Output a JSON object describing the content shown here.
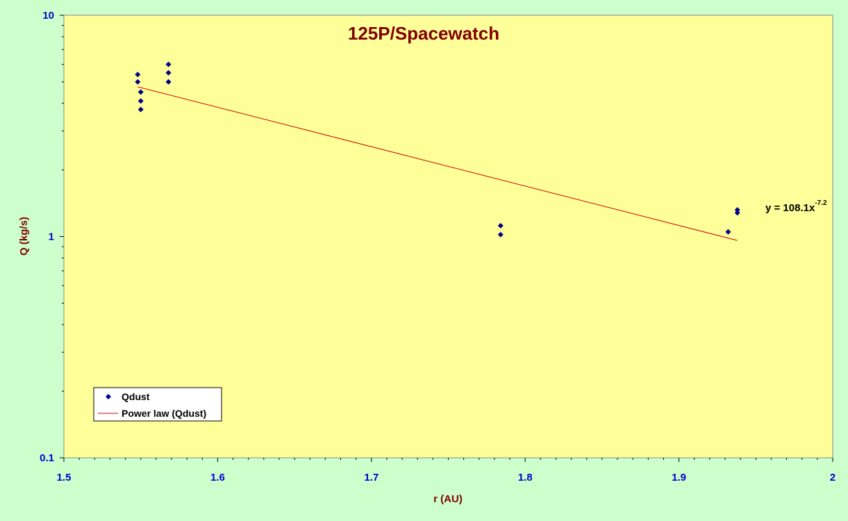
{
  "chart_data": {
    "type": "scatter",
    "title": "125P/Spacewatch",
    "xlabel": "r (AU)",
    "ylabel": "Q (kg/s)",
    "xlim": [
      1.5,
      2
    ],
    "ylim": [
      0.1,
      10
    ],
    "y_scale": "log",
    "x_ticks": [
      "1.5",
      "1.6",
      "1.7",
      "1.8",
      "1.9",
      "2"
    ],
    "y_ticks": [
      "0.1",
      "1",
      "10"
    ],
    "grid": false,
    "legend_position": "bottom-left",
    "series": [
      {
        "name": "Qdust",
        "kind": "points",
        "marker": "diamond",
        "color": "#00008b",
        "x": [
          1.548,
          1.548,
          1.55,
          1.55,
          1.55,
          1.568,
          1.568,
          1.568,
          1.784,
          1.784,
          1.932,
          1.938,
          1.938
        ],
        "y": [
          5.4,
          5.0,
          4.5,
          4.1,
          3.75,
          6.0,
          5.5,
          5.0,
          1.12,
          1.02,
          1.05,
          1.32,
          1.28
        ]
      },
      {
        "name": "Power law (Qdust)",
        "kind": "trendline",
        "color": "#cc0000",
        "x": [
          1.548,
          1.938
        ],
        "y": [
          4.75,
          0.96
        ]
      }
    ],
    "annotation": {
      "text": "y = 108.1x",
      "exponent": "-7.2"
    },
    "colors": {
      "background": "#ccffcc",
      "plot_area": "#ffff99",
      "title": "#800000",
      "tick_labels": "#0000cc",
      "axis_labels": "#800000"
    }
  }
}
